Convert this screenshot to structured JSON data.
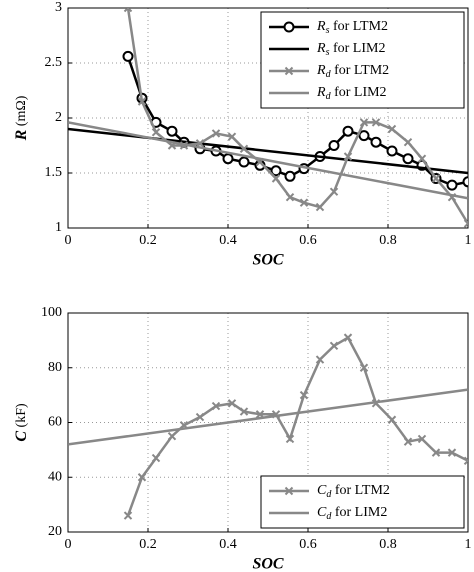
{
  "chart_data": [
    {
      "type": "line",
      "xlabel": "SOC",
      "ylabel": "R (mΩ)",
      "xlim": [
        0,
        1
      ],
      "ylim": [
        1,
        3
      ],
      "xticks": [
        0,
        0.2,
        0.4,
        0.6,
        0.8,
        1
      ],
      "yticks": [
        1,
        1.5,
        2,
        2.5,
        3
      ],
      "grid": true,
      "legend": "upper right",
      "series": [
        {
          "name": "Rs for LTM2",
          "color": "#000000",
          "marker": "circle",
          "x": [
            0.15,
            0.185,
            0.22,
            0.26,
            0.29,
            0.33,
            0.37,
            0.4,
            0.44,
            0.48,
            0.52,
            0.555,
            0.59,
            0.63,
            0.665,
            0.7,
            0.74,
            0.77,
            0.81,
            0.85,
            0.885,
            0.92,
            0.96,
            1.0
          ],
          "values": [
            2.56,
            2.18,
            1.96,
            1.88,
            1.78,
            1.72,
            1.7,
            1.63,
            1.6,
            1.57,
            1.52,
            1.47,
            1.54,
            1.65,
            1.75,
            1.88,
            1.84,
            1.78,
            1.7,
            1.63,
            1.57,
            1.45,
            1.39,
            1.42
          ]
        },
        {
          "name": "Rs for LIM2",
          "color": "#000000",
          "marker": "none",
          "x": [
            0,
            1
          ],
          "values": [
            1.9,
            1.5
          ]
        },
        {
          "name": "Rd for LTM2",
          "color": "#888888",
          "marker": "x",
          "x": [
            0.15,
            0.185,
            0.22,
            0.26,
            0.29,
            0.33,
            0.37,
            0.41,
            0.44,
            0.48,
            0.52,
            0.555,
            0.59,
            0.63,
            0.665,
            0.7,
            0.74,
            0.77,
            0.81,
            0.85,
            0.885,
            0.92,
            0.96,
            1.0
          ],
          "values": [
            3.0,
            2.15,
            1.87,
            1.75,
            1.75,
            1.77,
            1.86,
            1.83,
            1.72,
            1.6,
            1.45,
            1.28,
            1.23,
            1.19,
            1.33,
            1.65,
            1.96,
            1.96,
            1.9,
            1.78,
            1.63,
            1.45,
            1.28,
            1.04
          ]
        },
        {
          "name": "Rd for LIM2",
          "color": "#888888",
          "marker": "none",
          "x": [
            0,
            1
          ],
          "values": [
            1.96,
            1.27
          ]
        }
      ]
    },
    {
      "type": "line",
      "xlabel": "SOC",
      "ylabel": "C (kF)",
      "xlim": [
        0,
        1
      ],
      "ylim": [
        20,
        100
      ],
      "xticks": [
        0,
        0.2,
        0.4,
        0.6,
        0.8,
        1
      ],
      "yticks": [
        20,
        40,
        60,
        80,
        100
      ],
      "grid": true,
      "legend": "lower right",
      "series": [
        {
          "name": "Cd for LTM2",
          "color": "#888888",
          "marker": "x",
          "x": [
            0.15,
            0.185,
            0.22,
            0.26,
            0.29,
            0.33,
            0.37,
            0.41,
            0.44,
            0.48,
            0.52,
            0.555,
            0.59,
            0.63,
            0.665,
            0.7,
            0.74,
            0.77,
            0.81,
            0.85,
            0.885,
            0.92,
            0.96,
            1.0
          ],
          "values": [
            26,
            40,
            47,
            55,
            59,
            62,
            66,
            67,
            64,
            63,
            63,
            54,
            70,
            83,
            88,
            91,
            80,
            67,
            61,
            53,
            54,
            49,
            49,
            46
          ]
        },
        {
          "name": "Cd for LIM2",
          "color": "#888888",
          "marker": "none",
          "x": [
            0,
            1
          ],
          "values": [
            52,
            72
          ]
        }
      ]
    }
  ]
}
